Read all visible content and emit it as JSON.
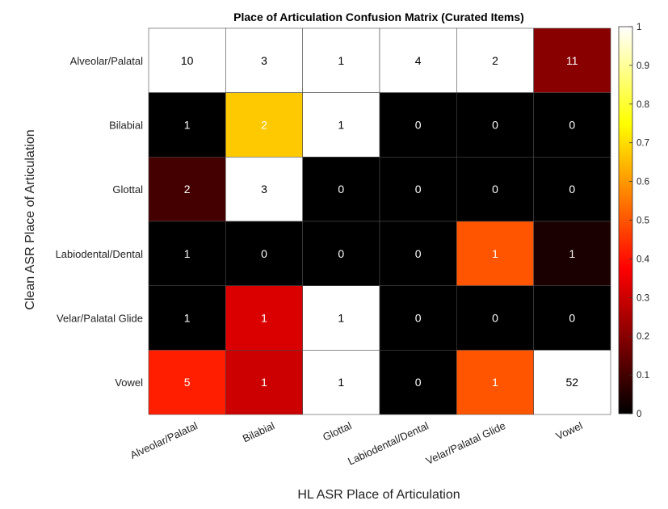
{
  "chart_data": {
    "type": "heatmap",
    "title": "Place of Articulation Confusion Matrix (Curated Items)",
    "xlabel": "HL ASR Place of Articulation",
    "ylabel": "Clean ASR Place of Articulation",
    "x_categories": [
      "Alveolar/Palatal",
      "Bilabial",
      "Glottal",
      "Labiodental/Dental",
      "Velar/Palatal Glide",
      "Vowel"
    ],
    "y_categories": [
      "Alveolar/Palatal",
      "Bilabial",
      "Glottal",
      "Labiodental/Dental",
      "Velar/Palatal Glide",
      "Vowel"
    ],
    "counts": [
      [
        10,
        3,
        1,
        4,
        2,
        11
      ],
      [
        1,
        2,
        1,
        0,
        0,
        0
      ],
      [
        2,
        3,
        0,
        0,
        0,
        0
      ],
      [
        1,
        0,
        0,
        0,
        1,
        1
      ],
      [
        1,
        1,
        1,
        0,
        0,
        0
      ],
      [
        5,
        1,
        1,
        0,
        1,
        52
      ]
    ],
    "color_values": [
      [
        1.0,
        1.0,
        1.0,
        1.0,
        1.0,
        0.2
      ],
      [
        0.0,
        0.67,
        1.0,
        0.0,
        0.0,
        0.0
      ],
      [
        0.1,
        1.0,
        0.0,
        0.0,
        0.0,
        0.0
      ],
      [
        0.0,
        0.0,
        0.0,
        0.0,
        0.5,
        0.04
      ],
      [
        0.0,
        0.32,
        1.0,
        0.0,
        0.0,
        0.0
      ],
      [
        0.42,
        0.3,
        1.0,
        0.0,
        0.5,
        1.0
      ]
    ],
    "colormap": "hot",
    "colorbar": {
      "range": [
        0,
        1
      ],
      "ticks": [
        "0",
        "0.1",
        "0.2",
        "0.3",
        "0.4",
        "0.5",
        "0.6",
        "0.7",
        "0.8",
        "0.9",
        "1"
      ]
    }
  }
}
